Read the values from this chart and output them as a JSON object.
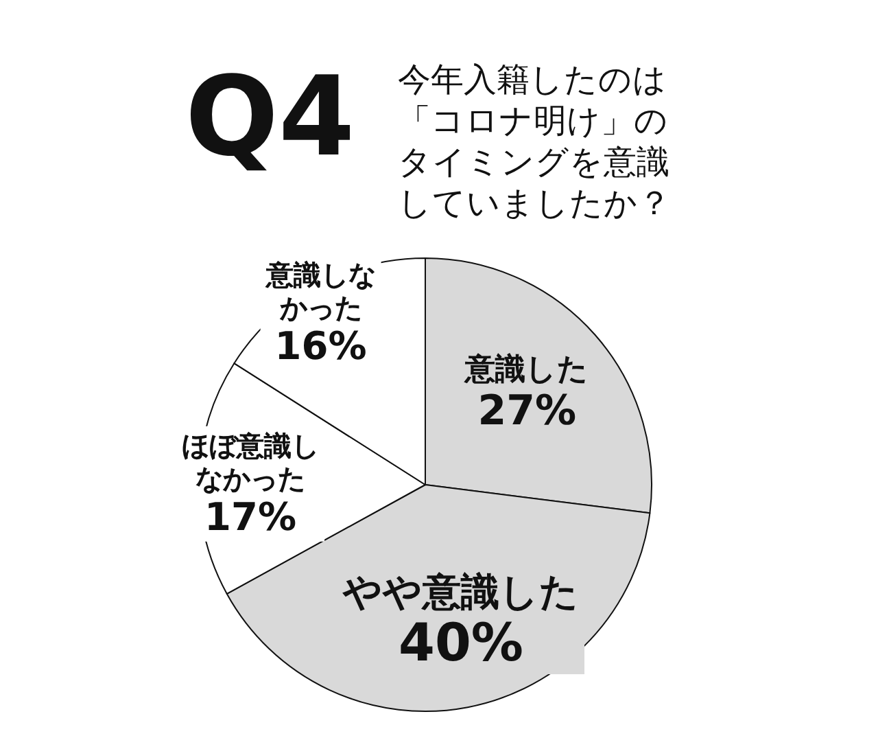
{
  "chart_data": {
    "type": "pie",
    "title": "Q4",
    "subtitle": "今年入籍したのは「コロナ明け」のタイミングを意識していましたか？",
    "categories": [
      "意識した",
      "やや意識した",
      "ほぼ意識しなかった",
      "意識しなかった"
    ],
    "values": [
      27,
      40,
      17,
      16
    ],
    "value_labels": [
      "27%",
      "40%",
      "17%",
      "16%"
    ],
    "colors": [
      "#d9d9d9",
      "#d9d9d9",
      "#ffffff",
      "#ffffff"
    ]
  }
}
